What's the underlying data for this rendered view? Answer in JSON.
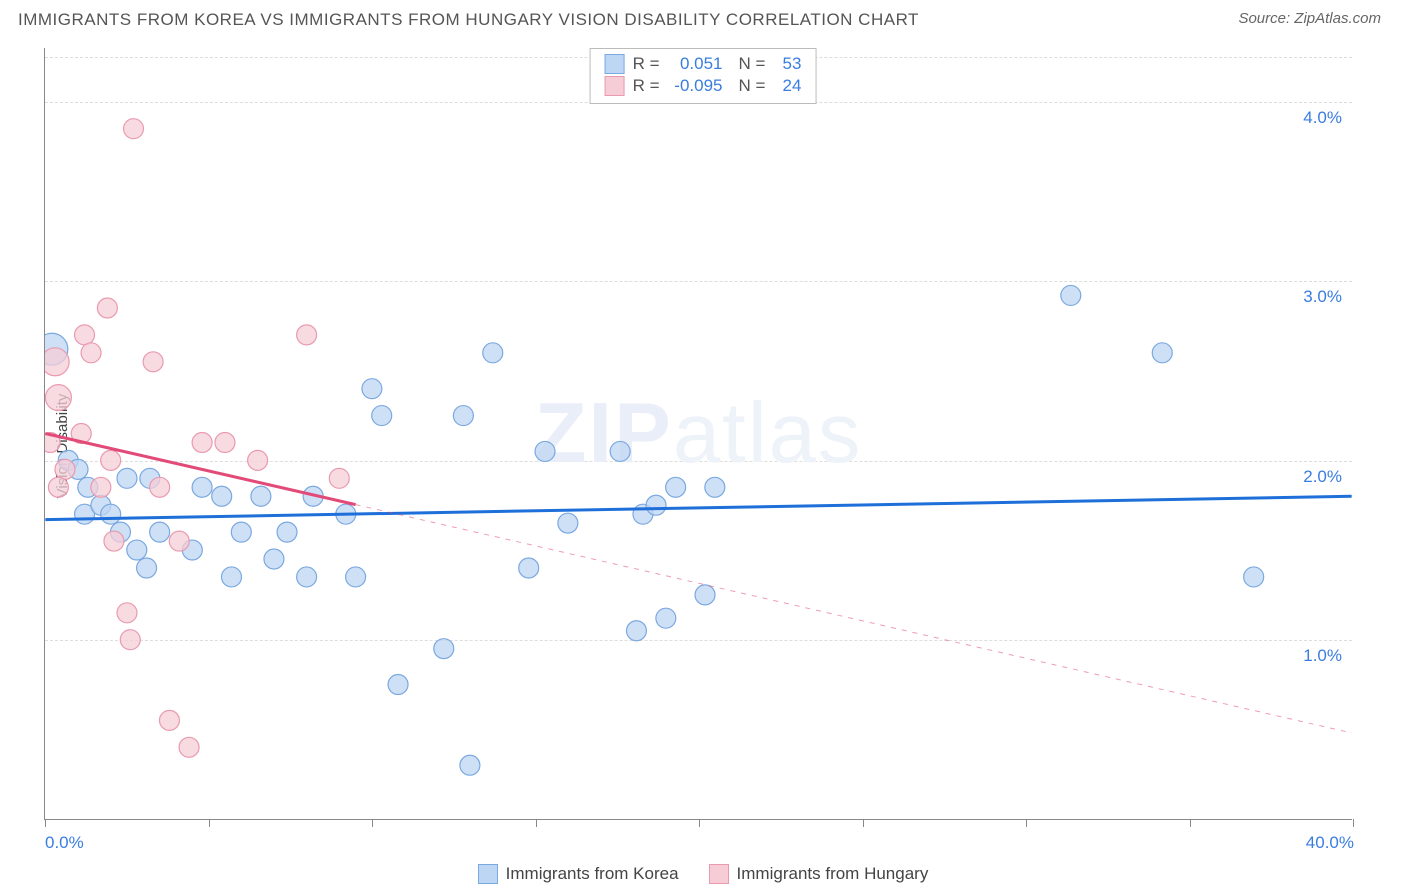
{
  "header": {
    "title": "IMMIGRANTS FROM KOREA VS IMMIGRANTS FROM HUNGARY VISION DISABILITY CORRELATION CHART",
    "source_label": "Source: ZipAtlas.com"
  },
  "watermark": {
    "bold": "ZIP",
    "light": "atlas"
  },
  "chart": {
    "type": "scatter-with-regression",
    "ylabel": "Vision Disability",
    "background_color": "#ffffff",
    "grid_color": "#dddddd",
    "axis_color": "#888888",
    "tick_label_color": "#3a7de0",
    "tick_label_fontsize": 17,
    "xlim": [
      0,
      40
    ],
    "ylim": [
      0,
      4.3
    ],
    "y_gridlines": [
      1.0,
      2.0,
      3.0,
      4.0
    ],
    "y_tick_labels": [
      "1.0%",
      "2.0%",
      "3.0%",
      "4.0%"
    ],
    "x_ticks": [
      0,
      5,
      10,
      15,
      20,
      25,
      30,
      35,
      40
    ],
    "x_min_label": "0.0%",
    "x_max_label": "40.0%",
    "series": [
      {
        "name": "Immigrants from Korea",
        "color_fill": "#bdd6f3",
        "color_stroke": "#7aa8e0",
        "marker_opacity": 0.75,
        "marker_radius": 10,
        "regression": {
          "x1": 0,
          "y1": 1.67,
          "x2": 40,
          "y2": 1.8,
          "color": "#1e6fd9",
          "width": 3,
          "dash_after_x": null
        },
        "points": [
          {
            "x": 0.2,
            "y": 2.62,
            "r": 16
          },
          {
            "x": 0.7,
            "y": 2.0
          },
          {
            "x": 1.0,
            "y": 1.95
          },
          {
            "x": 1.3,
            "y": 1.85
          },
          {
            "x": 1.2,
            "y": 1.7
          },
          {
            "x": 1.7,
            "y": 1.75
          },
          {
            "x": 2.0,
            "y": 1.7
          },
          {
            "x": 2.3,
            "y": 1.6
          },
          {
            "x": 2.5,
            "y": 1.9
          },
          {
            "x": 2.8,
            "y": 1.5
          },
          {
            "x": 3.2,
            "y": 1.9
          },
          {
            "x": 3.5,
            "y": 1.6
          },
          {
            "x": 3.1,
            "y": 1.4
          },
          {
            "x": 4.5,
            "y": 1.5
          },
          {
            "x": 4.8,
            "y": 1.85
          },
          {
            "x": 5.4,
            "y": 1.8
          },
          {
            "x": 5.7,
            "y": 1.35
          },
          {
            "x": 6.0,
            "y": 1.6
          },
          {
            "x": 6.6,
            "y": 1.8
          },
          {
            "x": 7.0,
            "y": 1.45
          },
          {
            "x": 7.4,
            "y": 1.6
          },
          {
            "x": 8.0,
            "y": 1.35
          },
          {
            "x": 8.2,
            "y": 1.8
          },
          {
            "x": 9.2,
            "y": 1.7
          },
          {
            "x": 9.5,
            "y": 1.35
          },
          {
            "x": 10.0,
            "y": 2.4
          },
          {
            "x": 10.3,
            "y": 2.25
          },
          {
            "x": 10.8,
            "y": 0.75
          },
          {
            "x": 12.2,
            "y": 0.95
          },
          {
            "x": 12.8,
            "y": 2.25
          },
          {
            "x": 13.0,
            "y": 0.3
          },
          {
            "x": 13.7,
            "y": 2.6
          },
          {
            "x": 14.8,
            "y": 1.4
          },
          {
            "x": 15.3,
            "y": 2.05
          },
          {
            "x": 16.0,
            "y": 1.65
          },
          {
            "x": 17.6,
            "y": 2.05
          },
          {
            "x": 18.3,
            "y": 1.7
          },
          {
            "x": 18.1,
            "y": 1.05
          },
          {
            "x": 18.7,
            "y": 1.75
          },
          {
            "x": 19.0,
            "y": 1.12
          },
          {
            "x": 19.3,
            "y": 1.85
          },
          {
            "x": 20.2,
            "y": 1.25
          },
          {
            "x": 20.5,
            "y": 1.85
          },
          {
            "x": 31.4,
            "y": 2.92
          },
          {
            "x": 34.2,
            "y": 2.6
          },
          {
            "x": 37.0,
            "y": 1.35
          }
        ]
      },
      {
        "name": "Immigrants from Hungary",
        "color_fill": "#f6cdd7",
        "color_stroke": "#e99ab0",
        "marker_opacity": 0.75,
        "marker_radius": 10,
        "regression": {
          "x1": 0,
          "y1": 2.15,
          "x2": 40,
          "y2": 0.48,
          "color": "#e24a78",
          "width": 3,
          "dash_after_x": 9.5
        },
        "points": [
          {
            "x": 0.3,
            "y": 2.55,
            "r": 14
          },
          {
            "x": 0.4,
            "y": 2.35,
            "r": 13
          },
          {
            "x": 0.15,
            "y": 2.1
          },
          {
            "x": 0.6,
            "y": 1.95
          },
          {
            "x": 0.4,
            "y": 1.85
          },
          {
            "x": 1.2,
            "y": 2.7
          },
          {
            "x": 1.4,
            "y": 2.6
          },
          {
            "x": 1.1,
            "y": 2.15
          },
          {
            "x": 1.9,
            "y": 2.85
          },
          {
            "x": 2.0,
            "y": 2.0
          },
          {
            "x": 1.7,
            "y": 1.85
          },
          {
            "x": 2.1,
            "y": 1.55
          },
          {
            "x": 2.7,
            "y": 3.85
          },
          {
            "x": 2.5,
            "y": 1.15
          },
          {
            "x": 2.6,
            "y": 1.0
          },
          {
            "x": 3.3,
            "y": 2.55
          },
          {
            "x": 3.5,
            "y": 1.85
          },
          {
            "x": 3.8,
            "y": 0.55
          },
          {
            "x": 4.1,
            "y": 1.55
          },
          {
            "x": 4.4,
            "y": 0.4
          },
          {
            "x": 4.8,
            "y": 2.1
          },
          {
            "x": 5.5,
            "y": 2.1
          },
          {
            "x": 6.5,
            "y": 2.0
          },
          {
            "x": 8.0,
            "y": 2.7
          },
          {
            "x": 9.0,
            "y": 1.9
          }
        ]
      }
    ],
    "stats_box": {
      "rows": [
        {
          "swatch_fill": "#bdd6f3",
          "swatch_stroke": "#7aa8e0",
          "r_label": "R =",
          "r_value": "0.051",
          "n_label": "N =",
          "n_value": "53"
        },
        {
          "swatch_fill": "#f6cdd7",
          "swatch_stroke": "#e99ab0",
          "r_label": "R =",
          "r_value": "-0.095",
          "n_label": "N =",
          "n_value": "24"
        }
      ]
    },
    "bottom_legend": [
      {
        "swatch_fill": "#bdd6f3",
        "swatch_stroke": "#7aa8e0",
        "label": "Immigrants from Korea"
      },
      {
        "swatch_fill": "#f6cdd7",
        "swatch_stroke": "#e99ab0",
        "label": "Immigrants from Hungary"
      }
    ]
  }
}
